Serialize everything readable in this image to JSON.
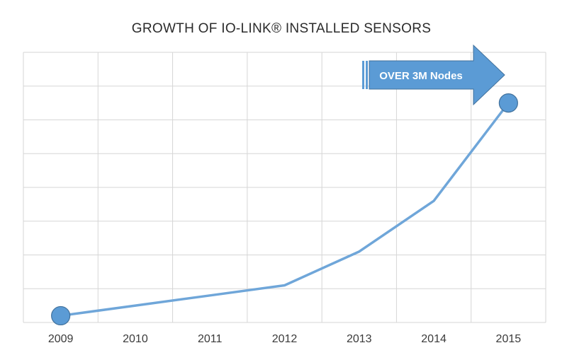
{
  "chart_data": {
    "type": "line",
    "title": "GROWTH OF IO-LINK® INSTALLED SENSORS",
    "categories": [
      "2009",
      "2010",
      "2011",
      "2012",
      "2013",
      "2014",
      "2015"
    ],
    "x": [
      2009,
      2010,
      2011,
      2012,
      2013,
      2014,
      2015
    ],
    "series": [
      {
        "values": [
          0.2,
          0.5,
          0.8,
          1.1,
          2.1,
          3.6,
          6.5
        ]
      }
    ],
    "ylim": [
      0,
      8
    ],
    "grid": true,
    "y_tick_labels_shown": false,
    "marked_points": [
      2009,
      2015
    ],
    "annotation": "OVER 3M Nodes",
    "colors": {
      "line": "#6fa6d9",
      "marker": "#5b9bd5",
      "grid": "#d6d6d6",
      "callout": "#5b9bd5"
    }
  }
}
